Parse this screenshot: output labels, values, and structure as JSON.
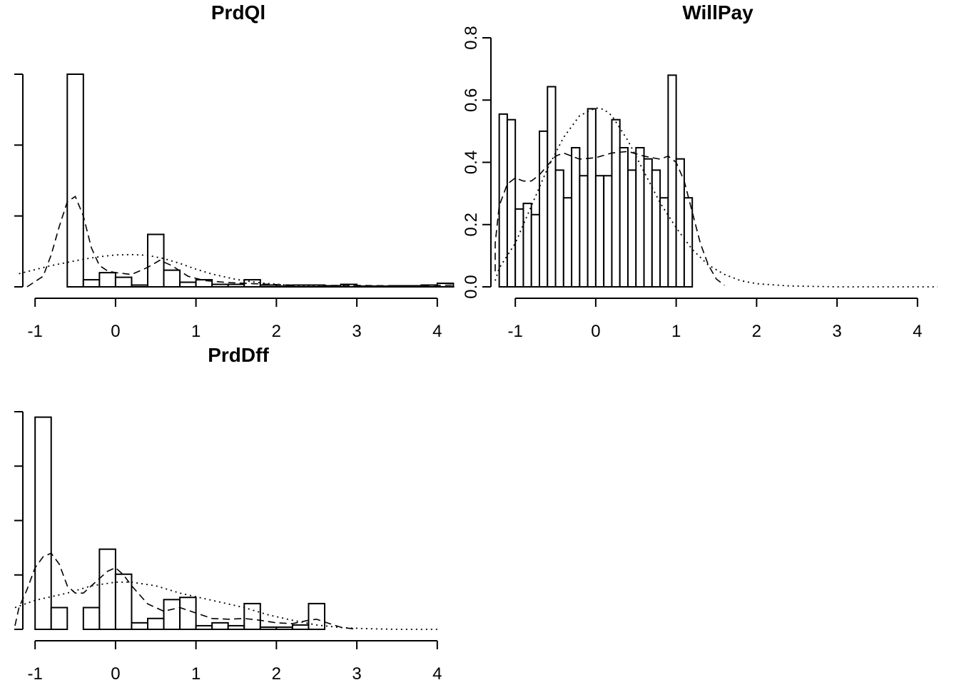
{
  "chart_data": [
    {
      "type": "bar",
      "title": "PrdQl",
      "xlabel": "",
      "ylabel": "",
      "xlim": [
        -1.25,
        4.25
      ],
      "ylim": [
        0,
        0.6
      ],
      "x_ticks": [
        -1,
        0,
        1,
        2,
        3,
        4
      ],
      "y_ticks": [
        0,
        0.2,
        0.4,
        0.6
      ],
      "y_tick_labels_visible": false,
      "bins": [
        {
          "x0": -0.6,
          "x1": -0.4,
          "y": 0.6
        },
        {
          "x0": -0.4,
          "x1": -0.2,
          "y": 0.02
        },
        {
          "x0": -0.2,
          "x1": 0.0,
          "y": 0.04
        },
        {
          "x0": 0.0,
          "x1": 0.2,
          "y": 0.027
        },
        {
          "x0": 0.2,
          "x1": 0.4,
          "y": 0.005
        },
        {
          "x0": 0.4,
          "x1": 0.6,
          "y": 0.148
        },
        {
          "x0": 0.6,
          "x1": 0.8,
          "y": 0.047
        },
        {
          "x0": 0.8,
          "x1": 1.0,
          "y": 0.013
        },
        {
          "x0": 1.0,
          "x1": 1.2,
          "y": 0.02
        },
        {
          "x0": 1.2,
          "x1": 1.4,
          "y": 0.007
        },
        {
          "x0": 1.4,
          "x1": 1.6,
          "y": 0.007
        },
        {
          "x0": 1.6,
          "x1": 1.8,
          "y": 0.02
        },
        {
          "x0": 1.8,
          "x1": 2.0,
          "y": 0.005
        },
        {
          "x0": 2.0,
          "x1": 2.2,
          "y": 0.002
        },
        {
          "x0": 2.2,
          "x1": 2.4,
          "y": 0.005
        },
        {
          "x0": 2.4,
          "x1": 2.6,
          "y": 0.005
        },
        {
          "x0": 2.6,
          "x1": 2.8,
          "y": 0.003
        },
        {
          "x0": 2.8,
          "x1": 3.0,
          "y": 0.007
        },
        {
          "x0": 3.0,
          "x1": 3.2,
          "y": 0.002
        },
        {
          "x0": 3.2,
          "x1": 3.4,
          "y": 0.002
        },
        {
          "x0": 3.4,
          "x1": 3.6,
          "y": 0.003
        },
        {
          "x0": 3.6,
          "x1": 3.8,
          "y": 0.003
        },
        {
          "x0": 3.8,
          "x1": 4.0,
          "y": 0.005
        },
        {
          "x0": 4.0,
          "x1": 4.2,
          "y": 0.01
        }
      ],
      "curves": [
        {
          "style": "dashed",
          "x": [
            -1.1,
            -0.9,
            -0.8,
            -0.7,
            -0.6,
            -0.5,
            -0.4,
            -0.3,
            -0.2,
            -0.1,
            0.0,
            0.2,
            0.4,
            0.55,
            0.7,
            0.9,
            1.1,
            1.4,
            1.8,
            2.2,
            2.6,
            3.0,
            3.4,
            3.8,
            4.2
          ],
          "y": [
            0.0,
            0.03,
            0.09,
            0.17,
            0.24,
            0.255,
            0.2,
            0.11,
            0.06,
            0.045,
            0.04,
            0.035,
            0.055,
            0.075,
            0.06,
            0.03,
            0.018,
            0.012,
            0.008,
            0.005,
            0.004,
            0.004,
            0.003,
            0.003,
            0.005
          ]
        },
        {
          "style": "dotted",
          "x": [
            -1.2,
            -0.8,
            -0.4,
            -0.2,
            0.0,
            0.2,
            0.4,
            0.6,
            0.8,
            1.0,
            1.2,
            1.5,
            1.8,
            2.2,
            2.6,
            3.0,
            3.5,
            4.0,
            4.3
          ],
          "y": [
            0.037,
            0.06,
            0.078,
            0.085,
            0.09,
            0.091,
            0.089,
            0.08,
            0.066,
            0.05,
            0.036,
            0.021,
            0.011,
            0.004,
            0.002,
            0.001,
            0.0,
            0.0,
            0.0
          ]
        }
      ]
    },
    {
      "type": "bar",
      "title": "WillPay",
      "xlabel": "",
      "ylabel": "",
      "xlim": [
        -1.25,
        4.25
      ],
      "ylim": [
        0,
        0.8
      ],
      "x_ticks": [
        -1,
        0,
        1,
        2,
        3,
        4
      ],
      "y_ticks": [
        0.0,
        0.2,
        0.4,
        0.6,
        0.8
      ],
      "y_tick_labels": [
        "0.0",
        "0.2",
        "0.4",
        "0.6",
        "0.8"
      ],
      "bins": [
        {
          "x0": -1.2,
          "x1": -1.1,
          "y": 0.555
        },
        {
          "x0": -1.1,
          "x1": -1.0,
          "y": 0.537
        },
        {
          "x0": -1.0,
          "x1": -0.9,
          "y": 0.25
        },
        {
          "x0": -0.9,
          "x1": -0.8,
          "y": 0.268
        },
        {
          "x0": -0.8,
          "x1": -0.7,
          "y": 0.232
        },
        {
          "x0": -0.7,
          "x1": -0.6,
          "y": 0.5
        },
        {
          "x0": -0.6,
          "x1": -0.5,
          "y": 0.643
        },
        {
          "x0": -0.5,
          "x1": -0.4,
          "y": 0.375
        },
        {
          "x0": -0.4,
          "x1": -0.3,
          "y": 0.286
        },
        {
          "x0": -0.3,
          "x1": -0.2,
          "y": 0.447
        },
        {
          "x0": -0.2,
          "x1": -0.1,
          "y": 0.357
        },
        {
          "x0": -0.1,
          "x1": 0.0,
          "y": 0.572
        },
        {
          "x0": 0.0,
          "x1": 0.1,
          "y": 0.357
        },
        {
          "x0": 0.1,
          "x1": 0.2,
          "y": 0.357
        },
        {
          "x0": 0.2,
          "x1": 0.3,
          "y": 0.537
        },
        {
          "x0": 0.3,
          "x1": 0.4,
          "y": 0.447
        },
        {
          "x0": 0.4,
          "x1": 0.5,
          "y": 0.375
        },
        {
          "x0": 0.5,
          "x1": 0.6,
          "y": 0.447
        },
        {
          "x0": 0.6,
          "x1": 0.7,
          "y": 0.411
        },
        {
          "x0": 0.7,
          "x1": 0.8,
          "y": 0.375
        },
        {
          "x0": 0.8,
          "x1": 0.9,
          "y": 0.286
        },
        {
          "x0": 0.9,
          "x1": 1.0,
          "y": 0.68
        },
        {
          "x0": 1.0,
          "x1": 1.1,
          "y": 0.411
        },
        {
          "x0": 1.1,
          "x1": 1.2,
          "y": 0.286
        }
      ],
      "curves": [
        {
          "style": "dashed",
          "x": [
            -1.4,
            -1.3,
            -1.2,
            -1.1,
            -1.0,
            -0.9,
            -0.8,
            -0.7,
            -0.6,
            -0.5,
            -0.4,
            -0.2,
            0.0,
            0.2,
            0.4,
            0.6,
            0.8,
            0.9,
            1.0,
            1.1,
            1.2,
            1.3,
            1.4,
            1.5,
            1.6
          ],
          "y": [
            0.05,
            0.14,
            0.26,
            0.33,
            0.35,
            0.34,
            0.34,
            0.36,
            0.39,
            0.42,
            0.43,
            0.41,
            0.415,
            0.43,
            0.435,
            0.42,
            0.41,
            0.42,
            0.4,
            0.34,
            0.24,
            0.14,
            0.07,
            0.025,
            0.005
          ]
        },
        {
          "style": "dotted",
          "x": [
            -1.4,
            -1.2,
            -1.0,
            -0.8,
            -0.6,
            -0.4,
            -0.2,
            0.0,
            0.1,
            0.2,
            0.4,
            0.6,
            0.8,
            1.0,
            1.2,
            1.4,
            1.6,
            1.8,
            2.0,
            2.4,
            3.0,
            4.0,
            4.25
          ],
          "y": [
            0.02,
            0.06,
            0.14,
            0.26,
            0.38,
            0.48,
            0.55,
            0.575,
            0.57,
            0.55,
            0.47,
            0.37,
            0.27,
            0.19,
            0.12,
            0.07,
            0.04,
            0.02,
            0.01,
            0.003,
            0.0,
            0.0,
            0.0
          ]
        }
      ]
    },
    {
      "type": "bar",
      "title": "PrdDff",
      "xlabel": "",
      "ylabel": "",
      "xlim": [
        -1.25,
        4.25
      ],
      "ylim": [
        0,
        0.6
      ],
      "x_ticks": [
        -1,
        0,
        1,
        2,
        3,
        4
      ],
      "y_ticks": [
        0,
        0.15,
        0.3,
        0.45,
        0.6
      ],
      "y_tick_labels_visible": false,
      "bins": [
        {
          "x0": -1.0,
          "x1": -0.8,
          "y": 0.585
        },
        {
          "x0": -0.8,
          "x1": -0.6,
          "y": 0.06
        },
        {
          "x0": -0.6,
          "x1": -0.4,
          "y": 0.0
        },
        {
          "x0": -0.4,
          "x1": -0.2,
          "y": 0.06
        },
        {
          "x0": -0.2,
          "x1": 0.0,
          "y": 0.221
        },
        {
          "x0": 0.0,
          "x1": 0.2,
          "y": 0.152
        },
        {
          "x0": 0.2,
          "x1": 0.4,
          "y": 0.018
        },
        {
          "x0": 0.4,
          "x1": 0.6,
          "y": 0.03
        },
        {
          "x0": 0.6,
          "x1": 0.8,
          "y": 0.082
        },
        {
          "x0": 0.8,
          "x1": 1.0,
          "y": 0.088
        },
        {
          "x0": 1.0,
          "x1": 1.2,
          "y": 0.01
        },
        {
          "x0": 1.2,
          "x1": 1.4,
          "y": 0.018
        },
        {
          "x0": 1.4,
          "x1": 1.6,
          "y": 0.01
        },
        {
          "x0": 1.6,
          "x1": 1.8,
          "y": 0.071
        },
        {
          "x0": 1.8,
          "x1": 2.0,
          "y": 0.006
        },
        {
          "x0": 2.0,
          "x1": 2.2,
          "y": 0.006
        },
        {
          "x0": 2.2,
          "x1": 2.4,
          "y": 0.012
        },
        {
          "x0": 2.4,
          "x1": 2.6,
          "y": 0.071
        }
      ],
      "curves": [
        {
          "style": "dashed",
          "x": [
            -1.35,
            -1.2,
            -1.1,
            -1.0,
            -0.9,
            -0.8,
            -0.7,
            -0.6,
            -0.5,
            -0.4,
            -0.3,
            -0.2,
            -0.1,
            0.0,
            0.1,
            0.2,
            0.4,
            0.6,
            0.8,
            1.0,
            1.2,
            1.4,
            1.6,
            1.8,
            2.0,
            2.2,
            2.4,
            2.5,
            2.6,
            2.8,
            3.0
          ],
          "y": [
            0.01,
            0.06,
            0.11,
            0.17,
            0.2,
            0.21,
            0.18,
            0.12,
            0.1,
            0.1,
            0.12,
            0.14,
            0.16,
            0.17,
            0.15,
            0.12,
            0.07,
            0.05,
            0.06,
            0.045,
            0.03,
            0.028,
            0.03,
            0.025,
            0.018,
            0.016,
            0.025,
            0.028,
            0.02,
            0.006,
            0.0
          ]
        },
        {
          "style": "dotted",
          "x": [
            -1.35,
            -1.0,
            -0.6,
            -0.3,
            0.0,
            0.2,
            0.5,
            0.8,
            1.0,
            1.3,
            1.6,
            1.9,
            2.2,
            2.5,
            2.8,
            3.1,
            3.5,
            4.0
          ],
          "y": [
            0.06,
            0.08,
            0.1,
            0.12,
            0.13,
            0.13,
            0.12,
            0.1,
            0.09,
            0.075,
            0.06,
            0.04,
            0.025,
            0.012,
            0.005,
            0.002,
            0.0,
            0.0
          ]
        }
      ]
    }
  ]
}
